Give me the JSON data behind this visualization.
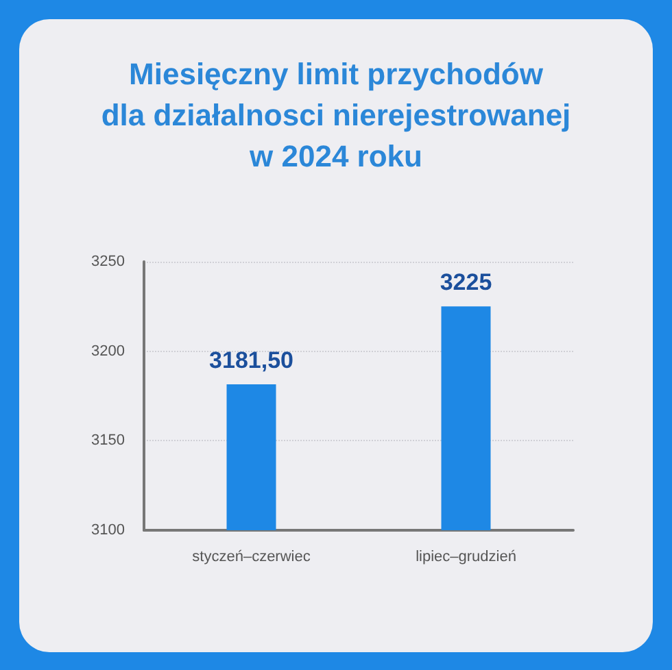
{
  "chart_data": {
    "type": "bar",
    "title": "Miesięczny limit przychodów\ndla działalnosci nierejestrowanej\nw 2024 roku",
    "categories": [
      "styczeń–czerwiec",
      "lipiec–grudzień"
    ],
    "values": [
      3181.5,
      3225
    ],
    "value_labels": [
      "3181,50",
      "3225"
    ],
    "color": "#1e88e5",
    "ylim": [
      3100,
      3250
    ],
    "yticks": [
      3100,
      3150,
      3200,
      3250
    ],
    "grid": "y"
  }
}
